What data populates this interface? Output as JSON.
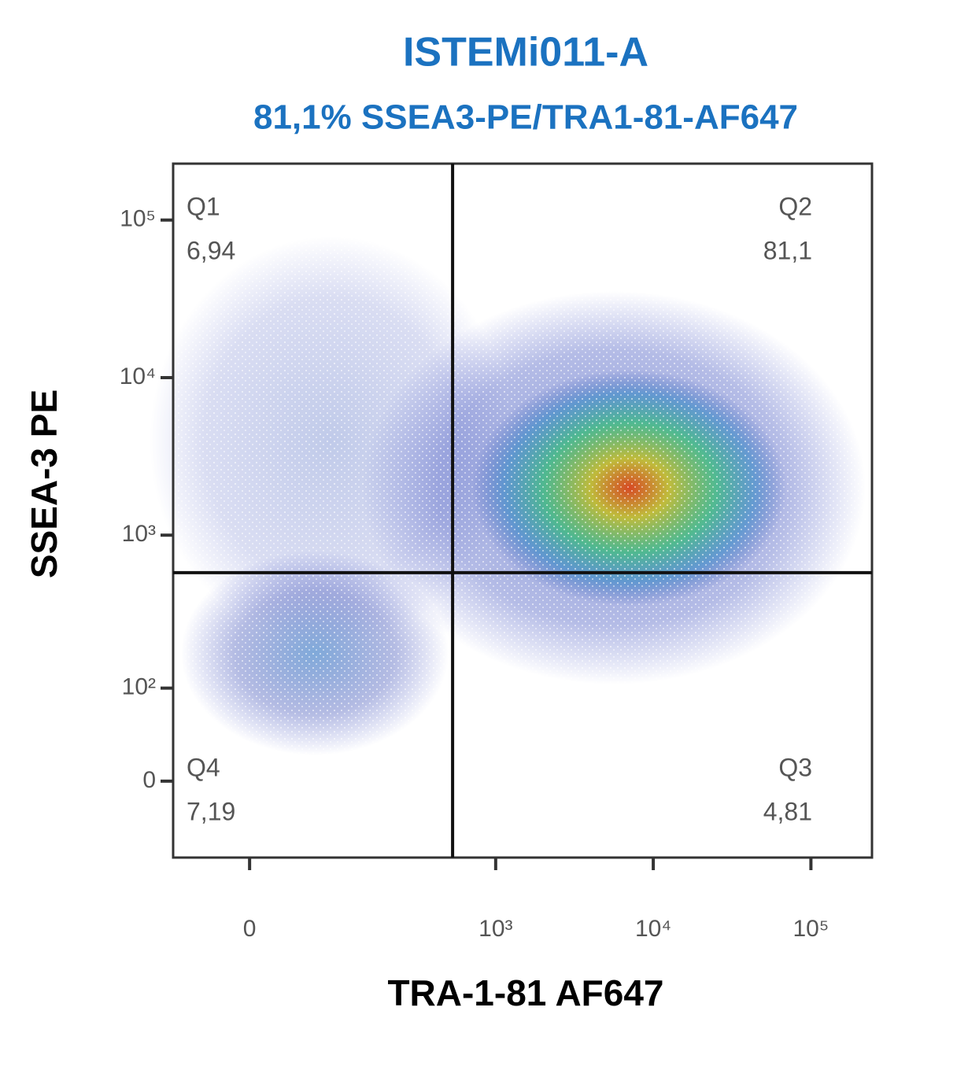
{
  "chart_data": {
    "type": "scatter",
    "title": "ISTEMi011-A",
    "subtitle": "81,1% SSEA3-PE/TRA1-81-AF647",
    "x_label": "TRA-1-81 AF647",
    "y_label": "SSEA-3 PE",
    "xlim": [
      -75,
      244000
    ],
    "ylim": [
      -75,
      228000
    ],
    "xticks": [
      0,
      {
        "value": 1000,
        "label": "10³"
      },
      {
        "value": 10000,
        "label": "10⁴"
      },
      {
        "value": 100000,
        "label": "10⁵"
      }
    ],
    "yticks": [
      0,
      {
        "value": 100,
        "label": "10²"
      },
      {
        "value": 1000,
        "label": "10³"
      },
      {
        "value": 10000,
        "label": "10⁴"
      },
      {
        "value": 100000,
        "label": "10⁵"
      }
    ],
    "gate": {
      "x": 532,
      "y": 577
    },
    "quadrants": {
      "names": [
        "Q1",
        "Q2",
        "Q3",
        "Q4"
      ],
      "values": [
        6.94,
        81.1,
        4.81,
        7.19
      ],
      "value_labels": [
        "6,94",
        "81,1",
        "4,81",
        "7,19"
      ]
    }
  }
}
